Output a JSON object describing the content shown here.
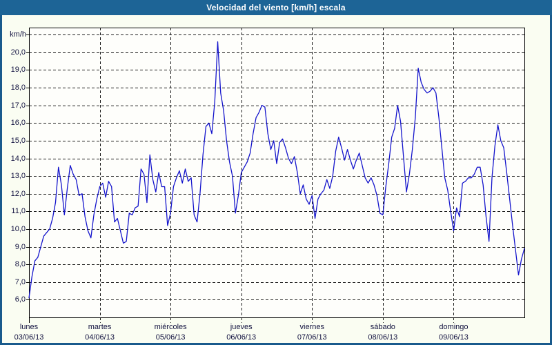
{
  "window": {
    "title": "Velocidad del viento [km/h] escala",
    "title_bar_color": "#1d6496",
    "border_color": "#195a8c",
    "background_color": "#fafdf2"
  },
  "chart_data": {
    "type": "line",
    "title": "Velocidad del viento [km/h] escala",
    "ylabel": "km/h",
    "legend": "none",
    "grid": true,
    "colors": {
      "line": "#1414cc",
      "grid_line": "#1a1a1a",
      "axis": "#000000",
      "label_text": "#11113f",
      "plot_background": "#fefefb"
    },
    "y_axis": {
      "tick_max": 20.0,
      "tick_min": 6.0,
      "tick_step": 1.0,
      "tick_labels": [
        "20,0",
        "19,0",
        "18,0",
        "17,0",
        "16,0",
        "15,0",
        "14,0",
        "13,0",
        "12,0",
        "11,0",
        "10,0",
        "9,0",
        "8,0",
        "7,0",
        "6,0"
      ],
      "ylim": [
        5.0,
        21.4
      ],
      "unlabeled_gridline": 21.0
    },
    "x_axis": {
      "points_per_day": 24,
      "days": [
        {
          "name": "lunes",
          "date": "03/06/13"
        },
        {
          "name": "martes",
          "date": "04/06/13"
        },
        {
          "name": "miércoles",
          "date": "05/06/13"
        },
        {
          "name": "jueves",
          "date": "06/06/13"
        },
        {
          "name": "viernes",
          "date": "07/06/13"
        },
        {
          "name": "sábado",
          "date": "08/06/13"
        },
        {
          "name": "domingo",
          "date": "09/06/13"
        }
      ]
    },
    "series": [
      {
        "name": "Velocidad del viento",
        "unit": "km/h",
        "color": "#1414cc",
        "values": [
          6.1,
          7.3,
          8.2,
          8.4,
          9.0,
          9.6,
          9.8,
          10.0,
          10.6,
          11.5,
          13.5,
          12.5,
          10.8,
          12.3,
          13.6,
          13.1,
          12.8,
          11.9,
          12.0,
          10.7,
          9.9,
          9.5,
          10.8,
          11.7,
          12.4,
          12.6,
          11.8,
          12.7,
          12.4,
          10.4,
          10.6,
          9.9,
          9.2,
          9.3,
          10.9,
          10.8,
          11.2,
          11.3,
          13.4,
          13.1,
          11.5,
          14.2,
          12.8,
          12.1,
          13.2,
          12.4,
          12.4,
          10.2,
          10.9,
          12.4,
          12.9,
          13.3,
          12.6,
          13.4,
          12.7,
          12.9,
          10.8,
          10.4,
          12.0,
          14.2,
          15.8,
          16.0,
          15.4,
          17.2,
          20.6,
          17.7,
          16.7,
          15.0,
          13.8,
          13.0,
          10.9,
          11.9,
          13.2,
          13.5,
          13.8,
          14.3,
          15.4,
          16.3,
          16.6,
          17.0,
          16.9,
          15.4,
          14.5,
          15.0,
          13.7,
          14.9,
          15.1,
          14.6,
          14.0,
          13.7,
          14.1,
          13.2,
          12.0,
          12.5,
          11.7,
          11.4,
          11.9,
          10.6,
          11.7,
          12.0,
          12.2,
          12.8,
          12.3,
          13.0,
          14.4,
          15.2,
          14.6,
          13.9,
          14.5,
          13.9,
          13.4,
          13.9,
          14.3,
          13.6,
          12.9,
          12.6,
          12.9,
          12.5,
          11.9,
          10.9,
          10.8,
          12.4,
          13.7,
          15.2,
          15.7,
          17.0,
          16.1,
          14.1,
          12.1,
          13.1,
          14.5,
          16.3,
          19.1,
          18.3,
          17.9,
          17.7,
          17.8,
          18.0,
          17.7,
          16.3,
          14.6,
          12.9,
          12.2,
          11.0,
          9.9,
          11.2,
          10.7,
          12.6,
          12.7,
          12.9,
          12.9,
          13.1,
          13.5,
          13.5,
          12.5,
          10.7,
          9.3,
          12.9,
          14.7,
          15.9,
          15.0,
          14.6,
          13.2,
          11.7,
          10.2,
          8.8,
          7.4,
          8.3,
          8.9
        ]
      }
    ]
  }
}
